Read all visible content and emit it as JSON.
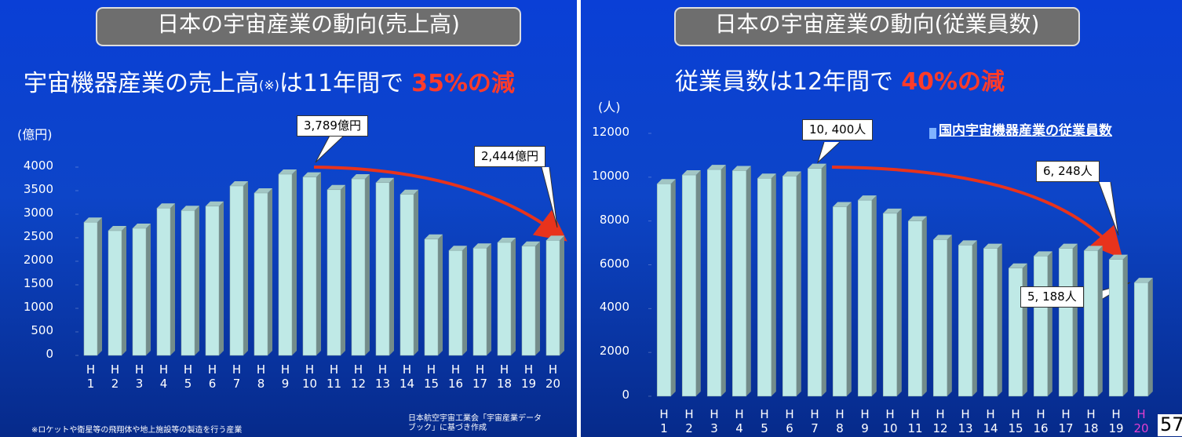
{
  "chart_data": [
    {
      "type": "bar",
      "title": "日本の宇宙産業の動向(売上高)",
      "subtitle_parts": [
        "宇宙機器産業の売上高",
        "(※)",
        "は11年間で",
        "35%の減"
      ],
      "y_label": "(億円)",
      "categories": [
        "H\n1",
        "H\n2",
        "H\n3",
        "H\n4",
        "H\n5",
        "H\n6",
        "H\n7",
        "H\n8",
        "H\n9",
        "H\n10",
        "H\n11",
        "H\n12",
        "H\n13",
        "H\n14",
        "H\n15",
        "H\n16",
        "H\n17",
        "H\n18",
        "H\n19",
        "H\n20"
      ],
      "values": [
        2830,
        2650,
        2700,
        3130,
        3080,
        3170,
        3600,
        3450,
        3850,
        3789,
        3520,
        3750,
        3670,
        3420,
        2470,
        2230,
        2280,
        2400,
        2320,
        2444
      ],
      "color": "#bfe9e6",
      "ylim": [
        0,
        4000
      ],
      "yticks": [
        0,
        500,
        1000,
        1500,
        2000,
        2500,
        3000,
        3500,
        4000
      ],
      "annotations": [
        "3,789億円",
        "2,444億円"
      ],
      "notes": [
        "※ロケットや衛星等の飛翔体や地上施設等の製造を行う産業",
        "日本航空宇宙工業会「宇宙産業データ\nブック」に基づき作成"
      ]
    },
    {
      "type": "bar",
      "title": "日本の宇宙産業の動向(従業員数)",
      "subtitle_parts": [
        "従業員数は12年間で",
        "40%の減"
      ],
      "y_label": "(人)",
      "legend": "国内宇宙機器産業の従業員数",
      "categories": [
        "H\n1",
        "H\n2",
        "H\n3",
        "H\n4",
        "H\n5",
        "H\n6",
        "H\n7",
        "H\n8",
        "H\n9",
        "H\n10",
        "H\n11",
        "H\n12",
        "H\n13",
        "H\n14",
        "H\n15",
        "H\n16",
        "H\n17",
        "H\n18",
        "H\n19",
        "H\n20"
      ],
      "values": [
        9700,
        10100,
        10350,
        10300,
        9950,
        10050,
        10400,
        8650,
        8950,
        8350,
        8000,
        7150,
        6900,
        6750,
        5850,
        6400,
        6750,
        6650,
        6248,
        5188
      ],
      "color": "#bfe9e6",
      "last_category_color": "#e23fd0",
      "ylim": [
        0,
        12000
      ],
      "yticks": [
        0,
        2000,
        4000,
        6000,
        8000,
        10000,
        12000
      ],
      "annotations": [
        "10, 400人",
        "6, 248人",
        "5, 188人"
      ]
    }
  ],
  "page_number": "57"
}
